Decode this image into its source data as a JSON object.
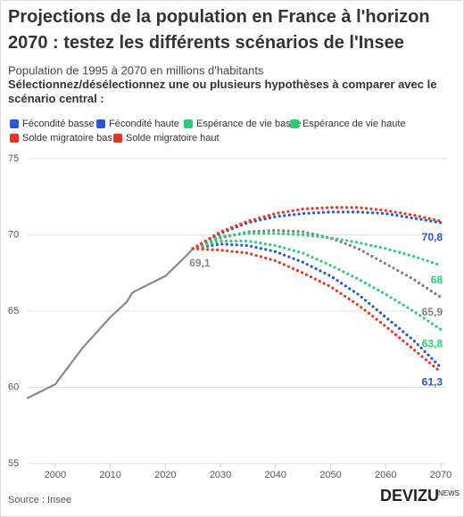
{
  "chart_data": {
    "type": "line",
    "title": "Projections de la population en France à l'horizon 2070 : testez les différents scénarios de l'Insee",
    "subtitle": "Population de 1995 à 2070 en millions d'habitants",
    "instruction": "Sélectionnez/désélectionnez une ou plusieurs hypothèses à comparer avec le scénario central :",
    "source": "Source : Insee",
    "logo": "DEVIZU",
    "logo_suffix": "NEWS",
    "x": [
      1995,
      2000,
      2005,
      2010,
      2013,
      2014,
      2015,
      2020,
      2024,
      2025,
      2030,
      2035,
      2040,
      2045,
      2050,
      2055,
      2060,
      2065,
      2070
    ],
    "xlim": [
      1995,
      2070
    ],
    "xticks": [
      2000,
      2010,
      2020,
      2030,
      2040,
      2050,
      2060,
      2070
    ],
    "ylim": [
      55,
      75
    ],
    "yticks": [
      55,
      60,
      65,
      70,
      75
    ],
    "grid": true,
    "series": [
      {
        "color": "#8a8a8a",
        "style": "solid",
        "values": [
          59.3,
          60.2,
          62.6,
          64.6,
          65.6,
          66.2,
          66.4,
          67.3,
          68.7,
          69.1,
          null,
          null,
          null,
          null,
          null,
          null,
          null,
          null,
          null
        ],
        "value_labels": [
          null,
          null,
          null,
          null,
          null,
          null,
          null,
          null,
          null,
          "69,1",
          null,
          null,
          null,
          null,
          null,
          null,
          null,
          null,
          null
        ]
      },
      {
        "color": "#7f7f7f",
        "style": "dotted",
        "values": [
          null,
          null,
          null,
          null,
          null,
          null,
          null,
          null,
          null,
          69.1,
          69.8,
          70.2,
          70.3,
          70.2,
          69.8,
          69.1,
          68.1,
          67.1,
          65.9
        ],
        "value_labels": [
          null,
          null,
          null,
          null,
          null,
          null,
          null,
          null,
          null,
          null,
          null,
          null,
          null,
          null,
          null,
          null,
          null,
          null,
          "65,9"
        ]
      },
      {
        "name": "Fécondité basse",
        "color": "#2456d6",
        "style": "dotted",
        "values": [
          null,
          null,
          null,
          null,
          null,
          null,
          null,
          null,
          null,
          69.1,
          69.4,
          69.3,
          68.9,
          68.2,
          67.3,
          66.1,
          64.6,
          63.1,
          61.3
        ],
        "value_labels": [
          null,
          null,
          null,
          null,
          null,
          null,
          null,
          null,
          null,
          null,
          null,
          null,
          null,
          null,
          null,
          null,
          null,
          null,
          "61,3"
        ]
      },
      {
        "name": "Fécondité haute",
        "color": "#2456d6",
        "style": "dotted",
        "values": [
          null,
          null,
          null,
          null,
          null,
          null,
          null,
          null,
          null,
          69.1,
          70.1,
          70.8,
          71.2,
          71.4,
          71.5,
          71.5,
          71.4,
          71.1,
          70.8
        ],
        "value_labels": [
          null,
          null,
          null,
          null,
          null,
          null,
          null,
          null,
          null,
          null,
          null,
          null,
          null,
          null,
          null,
          null,
          null,
          null,
          "70,8"
        ]
      },
      {
        "name": "Espérance de vie basse",
        "color": "#2ecc78",
        "style": "dotted",
        "values": [
          null,
          null,
          null,
          null,
          null,
          null,
          null,
          null,
          null,
          69.1,
          69.6,
          69.6,
          69.3,
          68.8,
          68.0,
          67.1,
          66.1,
          65.0,
          63.8
        ],
        "value_labels": [
          null,
          null,
          null,
          null,
          null,
          null,
          null,
          null,
          null,
          null,
          null,
          null,
          null,
          null,
          null,
          null,
          null,
          null,
          "63,8"
        ]
      },
      {
        "name": "Espérance de vie haute",
        "color": "#2ecc78",
        "style": "dotted",
        "values": [
          null,
          null,
          null,
          null,
          null,
          null,
          null,
          null,
          null,
          69.1,
          69.9,
          70.1,
          70.1,
          70.0,
          69.8,
          69.5,
          69.1,
          68.6,
          68
        ],
        "value_labels": [
          null,
          null,
          null,
          null,
          null,
          null,
          null,
          null,
          null,
          null,
          null,
          null,
          null,
          null,
          null,
          null,
          null,
          null,
          "68"
        ]
      },
      {
        "name": "Solde migratoire bas",
        "color": "#e8351f",
        "style": "dotted",
        "values": [
          null,
          null,
          null,
          null,
          null,
          null,
          null,
          null,
          null,
          69.1,
          69.0,
          68.8,
          68.3,
          67.5,
          66.6,
          65.4,
          64.0,
          62.5,
          61.0
        ]
      },
      {
        "name": "Solde migratoire haut",
        "color": "#e8351f",
        "style": "dotted",
        "values": [
          null,
          null,
          null,
          null,
          null,
          null,
          null,
          null,
          null,
          69.1,
          70.2,
          70.9,
          71.4,
          71.7,
          71.8,
          71.8,
          71.6,
          71.3,
          70.9
        ]
      }
    ]
  }
}
